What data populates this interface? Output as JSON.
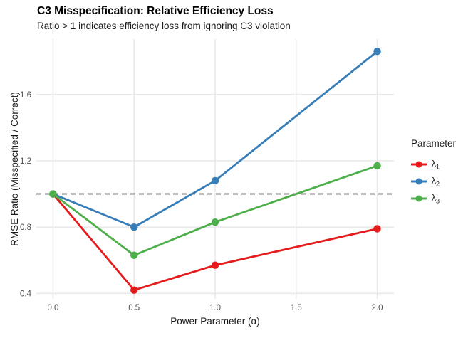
{
  "page": {
    "background": "#FFFFFF"
  },
  "chart_data": {
    "type": "line",
    "title": "C3 Misspecification: Relative Efficiency Loss",
    "subtitle": "Ratio > 1 indicates efficiency loss from ignoring C3 violation",
    "xlabel": "Power Parameter (α)",
    "ylabel": "RMSE Ratio (Misspecified / Correct)",
    "x": [
      0,
      0.5,
      1,
      2
    ],
    "series": [
      {
        "name": "lambda_1",
        "label": "λ",
        "label_sub": "1",
        "color": "#E41A1C",
        "values": [
          1.0,
          0.42,
          0.57,
          0.79
        ]
      },
      {
        "name": "lambda_2",
        "label": "λ",
        "label_sub": "2",
        "color": "#377EB8",
        "values": [
          1.0,
          0.8,
          1.08,
          1.86
        ]
      },
      {
        "name": "lambda_3",
        "label": "λ",
        "label_sub": "3",
        "color": "#4DAF4A",
        "values": [
          1.0,
          0.63,
          0.83,
          1.17
        ]
      }
    ],
    "x_tick_values": [
      0,
      0.5,
      1,
      1.5,
      2
    ],
    "x_tick_labels": [
      "0.0",
      "0.5",
      "1.0",
      "1.5",
      "2.0"
    ],
    "y_tick_values": [
      0.4,
      0.8,
      1.2,
      1.6
    ],
    "y_tick_labels": [
      "0.4",
      "0.8",
      "1.2",
      "1.6"
    ],
    "xlim": [
      -0.103,
      2.103
    ],
    "ylim": [
      0.367,
      1.934
    ],
    "grid": true,
    "legend": {
      "title": "Parameter",
      "position": "right"
    },
    "reference_line": {
      "y": 1.0,
      "style": "dashed",
      "color": "#7F7F7F"
    },
    "style": {
      "gridline_color": "#E8E8E8",
      "tick_label_color": "#4D4D4D",
      "line_width": 2.8,
      "point_radius": 5.2
    }
  }
}
